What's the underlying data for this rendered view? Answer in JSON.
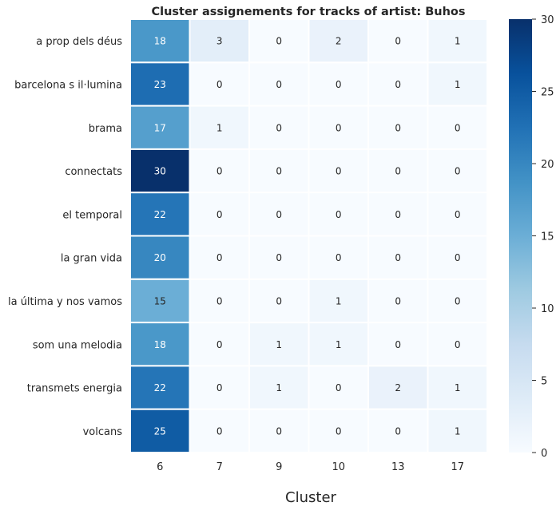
{
  "chart_data": {
    "type": "heatmap",
    "title": "Cluster assignements for tracks of artist: Buhos",
    "xlabel": "Cluster",
    "ylabel": "",
    "x": [
      "6",
      "7",
      "9",
      "10",
      "13",
      "17"
    ],
    "y": [
      "a prop dels déus",
      "barcelona s il·lumina",
      "brama",
      "connectats",
      "el temporal",
      "la gran vida",
      "la última y nos vamos",
      "som una melodia",
      "transmets energia",
      "volcans"
    ],
    "values": [
      [
        18,
        3,
        0,
        2,
        0,
        1
      ],
      [
        23,
        0,
        0,
        0,
        0,
        1
      ],
      [
        17,
        1,
        0,
        0,
        0,
        0
      ],
      [
        30,
        0,
        0,
        0,
        0,
        0
      ],
      [
        22,
        0,
        0,
        0,
        0,
        0
      ],
      [
        20,
        0,
        0,
        0,
        0,
        0
      ],
      [
        15,
        0,
        0,
        1,
        0,
        0
      ],
      [
        18,
        0,
        1,
        1,
        0,
        0
      ],
      [
        22,
        0,
        1,
        0,
        2,
        1
      ],
      [
        25,
        0,
        0,
        0,
        0,
        1
      ]
    ],
    "colorbar": {
      "min": 0,
      "max": 30,
      "ticks": [
        0,
        5,
        10,
        15,
        20,
        25,
        30
      ],
      "colormap": "Blues"
    },
    "annotations": "cell values shown",
    "legend": "colorbar right"
  }
}
